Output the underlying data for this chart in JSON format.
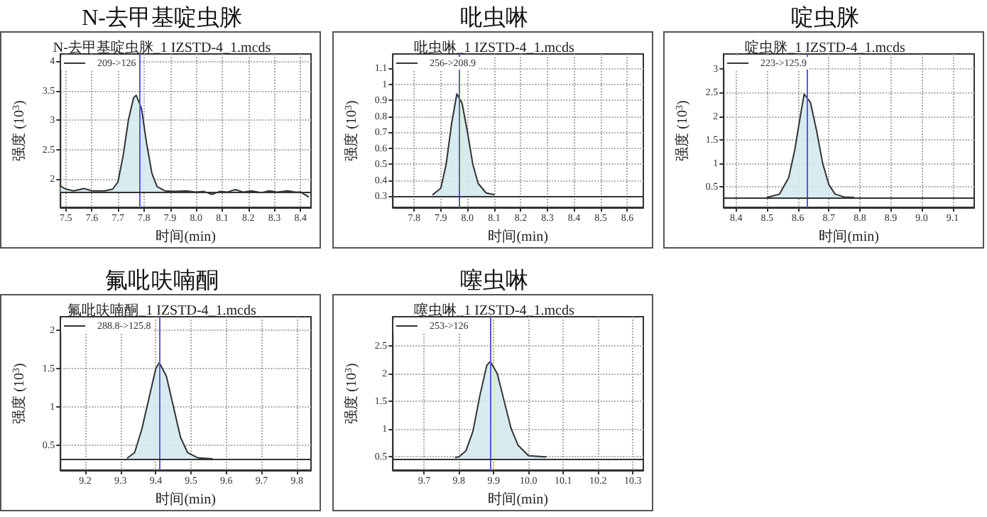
{
  "chart_data": [
    {
      "type": "area",
      "title": "N-去甲基啶虫脒",
      "subtitle": "N-去甲基啶虫脒_1 IZSTD-4_1.mcds",
      "xlabel": "时间(min)",
      "ylabel": "强度 (10$^{3}$)",
      "grid": true,
      "legend": "top left",
      "xlim": [
        7.48,
        8.44
      ],
      "xticks": [
        {
          "value": 7.5,
          "label": "7.5"
        },
        {
          "value": 7.6,
          "label": "7.6"
        },
        {
          "value": 7.7,
          "label": "7.7"
        },
        {
          "value": 7.8,
          "label": "7.8"
        },
        {
          "value": 7.9,
          "label": "7.9"
        },
        {
          "value": 8,
          "label": "8.0"
        },
        {
          "value": 8.1,
          "label": "8.1"
        },
        {
          "value": 8.2,
          "label": "8.2"
        },
        {
          "value": 8.3,
          "label": "8.3"
        },
        {
          "value": 8.4,
          "label": "8.4"
        }
      ],
      "ylim": [
        1.52,
        4.12
      ],
      "yticks": [
        2,
        2.5,
        3,
        3.5,
        4
      ],
      "ref_lines": [
        {
          "axis": "x",
          "value": 7.78,
          "color": "#5a5ad6"
        },
        {
          "axis": "y",
          "value": 1.78,
          "color": "#333333"
        }
      ],
      "series": [
        {
          "name": "209->126",
          "color": "#333333",
          "x": [
            7.48,
            7.5,
            7.53,
            7.57,
            7.6,
            7.65,
            7.68,
            7.7,
            7.72,
            7.74,
            7.76,
            7.77,
            7.79,
            7.81,
            7.83,
            7.85,
            7.88,
            7.92,
            7.96,
            8.0,
            8.03,
            8.06,
            8.09,
            8.12,
            8.15,
            8.18,
            8.21,
            8.25,
            8.28,
            8.31,
            8.35,
            8.38,
            8.4,
            8.43
          ],
          "values": [
            1.88,
            1.83,
            1.8,
            1.84,
            1.8,
            1.8,
            1.83,
            1.95,
            2.4,
            3.0,
            3.38,
            3.42,
            3.2,
            2.6,
            2.1,
            1.87,
            1.8,
            1.79,
            1.8,
            1.78,
            1.79,
            1.74,
            1.79,
            1.78,
            1.82,
            1.78,
            1.8,
            1.77,
            1.8,
            1.78,
            1.8,
            1.78,
            1.78,
            1.7
          ]
        }
      ]
    },
    {
      "type": "area",
      "title": "吡虫啉",
      "subtitle": "吡虫啉_1 IZSTD-4_1.mcds",
      "xlabel": "时间(min)",
      "ylabel": "强度 (10$^{3}$)",
      "grid": true,
      "legend": "top left",
      "xlim": [
        7.72,
        8.66
      ],
      "xticks": [
        {
          "value": 7.8,
          "label": "7.8"
        },
        {
          "value": 7.9,
          "label": "7.9"
        },
        {
          "value": 8,
          "label": "8.0"
        },
        {
          "value": 8.1,
          "label": "8.1"
        },
        {
          "value": 8.2,
          "label": "8.2"
        },
        {
          "value": 8.3,
          "label": "8.3"
        },
        {
          "value": 8.4,
          "label": "8.4"
        },
        {
          "value": 8.5,
          "label": "8.5"
        },
        {
          "value": 8.6,
          "label": "8.6"
        }
      ],
      "ylim": [
        0.23,
        1.19
      ],
      "yticks": [
        0.3,
        0.4,
        0.5,
        0.6,
        0.7,
        0.8,
        0.9,
        1,
        1.1
      ],
      "ref_lines": [
        {
          "axis": "x",
          "value": 7.97,
          "color": "#5a5ad6"
        },
        {
          "axis": "y",
          "value": 0.3,
          "color": "#333333"
        }
      ],
      "series": [
        {
          "name": "256->208.9",
          "color": "#333333",
          "x": [
            7.87,
            7.9,
            7.92,
            7.94,
            7.96,
            7.98,
            8.0,
            8.02,
            8.04,
            8.07,
            8.1
          ],
          "values": [
            0.31,
            0.35,
            0.5,
            0.75,
            0.94,
            0.88,
            0.7,
            0.5,
            0.38,
            0.32,
            0.31
          ]
        }
      ]
    },
    {
      "type": "area",
      "title": "啶虫脒",
      "subtitle": "啶虫脒_1 IZSTD-4_1.mcds",
      "xlabel": "时间(min)",
      "ylabel": "强度 (10$^{3}$)",
      "grid": true,
      "legend": "top left",
      "xlim": [
        8.36,
        9.17
      ],
      "xticks": [
        {
          "value": 8.4,
          "label": "8.4"
        },
        {
          "value": 8.5,
          "label": "8.5"
        },
        {
          "value": 8.6,
          "label": "8.6"
        },
        {
          "value": 8.7,
          "label": "8.7"
        },
        {
          "value": 8.8,
          "label": "8.8"
        },
        {
          "value": 8.9,
          "label": "8.9"
        },
        {
          "value": 9,
          "label": "9.0"
        },
        {
          "value": 9.1,
          "label": "9.1"
        }
      ],
      "ylim": [
        0.07,
        3.32
      ],
      "yticks": [
        0.5,
        1,
        1.5,
        2,
        2.5,
        3
      ],
      "ref_lines": [
        {
          "axis": "x",
          "value": 8.63,
          "color": "#5a5ad6"
        },
        {
          "axis": "y",
          "value": 0.27,
          "color": "#333333"
        }
      ],
      "series": [
        {
          "name": "223->125.9",
          "color": "#333333",
          "x": [
            8.5,
            8.54,
            8.57,
            8.59,
            8.61,
            8.62,
            8.64,
            8.66,
            8.68,
            8.7,
            8.72,
            8.75,
            8.78
          ],
          "values": [
            0.28,
            0.35,
            0.7,
            1.3,
            2.1,
            2.47,
            2.3,
            1.7,
            1.0,
            0.55,
            0.35,
            0.29,
            0.28
          ]
        }
      ]
    },
    {
      "type": "area",
      "title": "氟吡呋喃酮",
      "subtitle": "氟吡呋喃酮_1 IZSTD-4_1.mcds",
      "xlabel": "时间(min)",
      "ylabel": "强度 (10$^{3}$)",
      "grid": true,
      "legend": "top left",
      "xlim": [
        9.13,
        9.84
      ],
      "xticks": [
        {
          "value": 9.2,
          "label": "9.2"
        },
        {
          "value": 9.3,
          "label": "9.3"
        },
        {
          "value": 9.4,
          "label": "9.4"
        },
        {
          "value": 9.5,
          "label": "9.5"
        },
        {
          "value": 9.6,
          "label": "9.6"
        },
        {
          "value": 9.7,
          "label": "9.7"
        },
        {
          "value": 9.8,
          "label": "9.8"
        }
      ],
      "ylim": [
        0.17,
        2.18
      ],
      "yticks": [
        0.5,
        1,
        1.5,
        2
      ],
      "ref_lines": [
        {
          "axis": "x",
          "value": 9.41,
          "color": "#5a5ad6"
        },
        {
          "axis": "y",
          "value": 0.32,
          "color": "#333333"
        }
      ],
      "series": [
        {
          "name": "288.8->125.8",
          "color": "#333333",
          "x": [
            9.32,
            9.34,
            9.36,
            9.38,
            9.4,
            9.41,
            9.43,
            9.45,
            9.47,
            9.49,
            9.52,
            9.56
          ],
          "values": [
            0.33,
            0.4,
            0.7,
            1.1,
            1.5,
            1.58,
            1.4,
            1.0,
            0.6,
            0.4,
            0.33,
            0.32
          ]
        }
      ]
    },
    {
      "type": "area",
      "title": "噻虫啉",
      "subtitle": "噻虫啉_1 IZSTD-4_1.mcds",
      "xlabel": "时间(min)",
      "ylabel": "强度 (10$^{3}$)",
      "grid": true,
      "legend": "top left",
      "xlim": [
        9.61,
        10.33
      ],
      "xticks": [
        {
          "value": 9.7,
          "label": "9.7"
        },
        {
          "value": 9.8,
          "label": "9.8"
        },
        {
          "value": 9.9,
          "label": "9.9"
        },
        {
          "value": 10,
          "label": "10.0"
        },
        {
          "value": 10.1,
          "label": "10.1"
        },
        {
          "value": 10.2,
          "label": "10.2"
        },
        {
          "value": 10.3,
          "label": "10.3"
        }
      ],
      "ylim": [
        0.25,
        3.03
      ],
      "yticks": [
        0.5,
        1,
        1.5,
        2,
        2.5
      ],
      "ref_lines": [
        {
          "axis": "x",
          "value": 9.89,
          "color": "#5a5ad6"
        },
        {
          "axis": "y",
          "value": 0.46,
          "color": "#333333"
        }
      ],
      "series": [
        {
          "name": "253->126",
          "color": "#333333",
          "x": [
            9.79,
            9.8,
            9.82,
            9.84,
            9.86,
            9.88,
            9.89,
            9.91,
            9.93,
            9.95,
            9.97,
            10.0,
            10.05
          ],
          "values": [
            0.48,
            0.49,
            0.6,
            0.95,
            1.6,
            2.15,
            2.22,
            2.0,
            1.5,
            1.0,
            0.7,
            0.51,
            0.49
          ]
        }
      ]
    }
  ]
}
